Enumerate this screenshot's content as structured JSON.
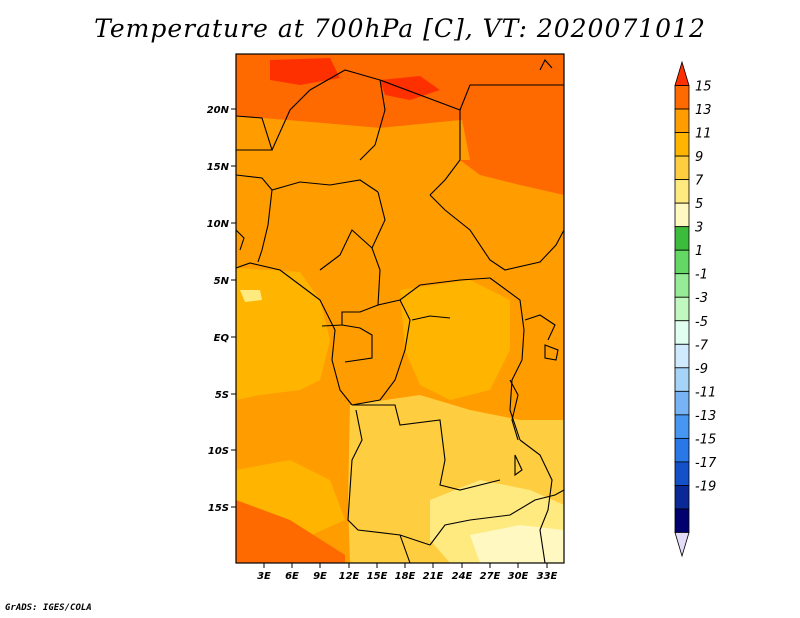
{
  "title": "Temperature at 700hPa [C], VT: 2020071012",
  "footer": "GrADS: IGES/COLA",
  "map": {
    "lat_labels": [
      "20N",
      "15N",
      "10N",
      "5N",
      "EQ",
      "5S",
      "10S",
      "15S"
    ],
    "lon_labels": [
      "3E",
      "6E",
      "9E",
      "12E",
      "15E",
      "18E",
      "21E",
      "24E",
      "27E",
      "30E",
      "33E"
    ]
  },
  "colorbar": {
    "labels": [
      "15",
      "13",
      "11",
      "9",
      "7",
      "5",
      "3",
      "1",
      "-1",
      "-3",
      "-5",
      "-7",
      "-9",
      "-11",
      "-13",
      "-15",
      "-17",
      "-19"
    ],
    "colors": [
      "#ff3000",
      "#ff6a00",
      "#ff9d00",
      "#ffb400",
      "#ffcd40",
      "#ffea80",
      "#fff8c0",
      "#3cbc3c",
      "#64d864",
      "#96ec96",
      "#c0f8c0",
      "#e0fff0",
      "#d0eafd",
      "#a6d4f8",
      "#78b4f5",
      "#4696f2",
      "#2a78e8",
      "#1450c8",
      "#0a2896",
      "#00006e",
      "#e4dcf8"
    ]
  }
}
